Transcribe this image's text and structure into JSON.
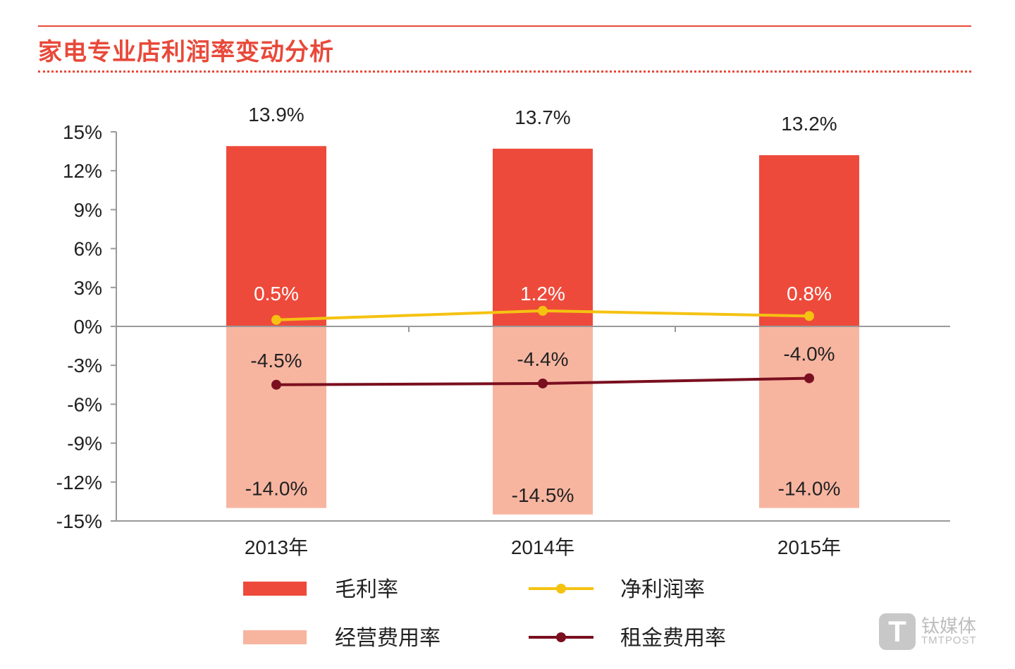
{
  "chart_data": {
    "type": "bar",
    "title": "家电专业店利润率变动分析",
    "categories": [
      "2013年",
      "2014年",
      "2015年"
    ],
    "ylim": [
      -15,
      15
    ],
    "yticks": [
      "15%",
      "12%",
      "9%",
      "6%",
      "3%",
      "0%",
      "-3%",
      "-6%",
      "-9%",
      "-12%",
      "-15%"
    ],
    "ytick_values": [
      15,
      12,
      9,
      6,
      3,
      0,
      -3,
      -6,
      -9,
      -12,
      -15
    ],
    "grid": false,
    "legend_position": "bottom",
    "series": [
      {
        "name": "毛利率",
        "kind": "bar",
        "color": "#ee4a3b",
        "values": [
          13.9,
          13.7,
          13.2
        ],
        "labels": [
          "13.9%",
          "13.7%",
          "13.2%"
        ]
      },
      {
        "name": "经营费用率",
        "kind": "bar",
        "color": "#f7b5a0",
        "values": [
          -14.0,
          -14.5,
          -14.0
        ],
        "labels": [
          "-14.0%",
          "-14.5%",
          "-14.0%"
        ]
      },
      {
        "name": "净利润率",
        "kind": "line",
        "color": "#f5c211",
        "values": [
          0.5,
          1.2,
          0.8
        ],
        "labels": [
          "0.5%",
          "1.2%",
          "0.8%"
        ]
      },
      {
        "name": "租金费用率",
        "kind": "line",
        "color": "#7a0f1f",
        "values": [
          -4.5,
          -4.4,
          -4.0
        ],
        "labels": [
          "-4.5%",
          "-4.4%",
          "-4.0%"
        ]
      }
    ]
  },
  "watermark": {
    "cn": "钛媒体",
    "en": "TMTPOST",
    "logo": "T"
  }
}
